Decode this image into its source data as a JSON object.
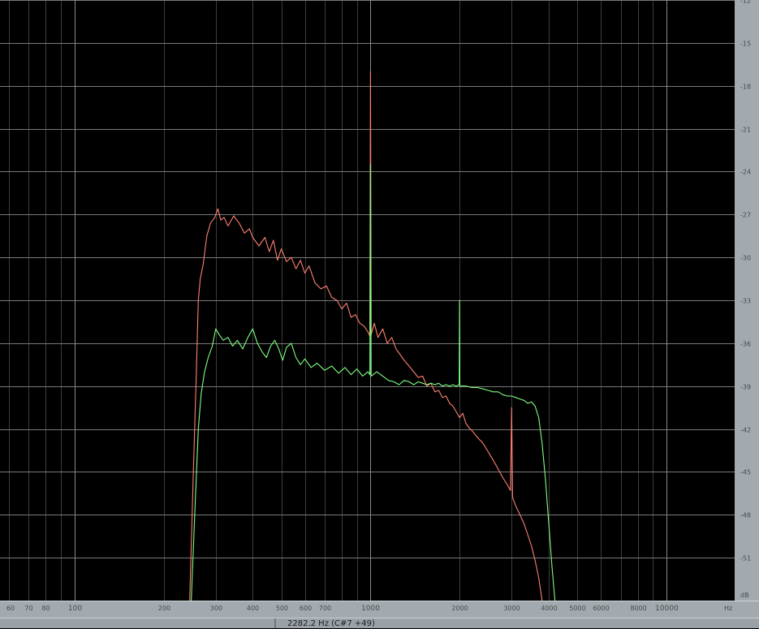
{
  "chart_data": {
    "type": "line",
    "x_scale": "log",
    "xlim": [
      56,
      17000
    ],
    "ylim": [
      -54,
      -12
    ],
    "grid": true,
    "x_unit": "Hz",
    "y_unit": "dB",
    "x_ticks": [
      {
        "value": 60,
        "label": "60",
        "major": false
      },
      {
        "value": 70,
        "label": "70",
        "major": false
      },
      {
        "value": 80,
        "label": "80",
        "major": false
      },
      {
        "value": 100,
        "label": "100",
        "major": true
      },
      {
        "value": 200,
        "label": "200",
        "major": false
      },
      {
        "value": 300,
        "label": "300",
        "major": false
      },
      {
        "value": 400,
        "label": "400",
        "major": false
      },
      {
        "value": 500,
        "label": "500",
        "major": false
      },
      {
        "value": 600,
        "label": "600",
        "major": false
      },
      {
        "value": 700,
        "label": "700",
        "major": false
      },
      {
        "value": 1000,
        "label": "1000",
        "major": true
      },
      {
        "value": 2000,
        "label": "2000",
        "major": false
      },
      {
        "value": 3000,
        "label": "3000",
        "major": false
      },
      {
        "value": 4000,
        "label": "4000",
        "major": false
      },
      {
        "value": 5000,
        "label": "5000",
        "major": false
      },
      {
        "value": 6000,
        "label": "6000",
        "major": false
      },
      {
        "value": 8000,
        "label": "8000",
        "major": false
      },
      {
        "value": 10000,
        "label": "10000",
        "major": true
      }
    ],
    "y_ticks": [
      {
        "value": -12,
        "label": "-12"
      },
      {
        "value": -15,
        "label": "-15"
      },
      {
        "value": -18,
        "label": "-18"
      },
      {
        "value": -21,
        "label": "-21"
      },
      {
        "value": -24,
        "label": "-24"
      },
      {
        "value": -27,
        "label": "-27"
      },
      {
        "value": -30,
        "label": "-30"
      },
      {
        "value": -33,
        "label": "-33"
      },
      {
        "value": -36,
        "label": "-36"
      },
      {
        "value": -39,
        "label": "-39"
      },
      {
        "value": -42,
        "label": "-42"
      },
      {
        "value": -45,
        "label": "-45"
      },
      {
        "value": -48,
        "label": "-48"
      },
      {
        "value": -51,
        "label": "-51"
      }
    ],
    "series": [
      {
        "color": "#ff8070",
        "points": [
          [
            245,
            -54
          ],
          [
            252,
            -45
          ],
          [
            258,
            -38
          ],
          [
            262,
            -33
          ],
          [
            266,
            -31.5
          ],
          [
            272,
            -30.5
          ],
          [
            280,
            -28.5
          ],
          [
            288,
            -27.6
          ],
          [
            298,
            -27.2
          ],
          [
            305,
            -26.6
          ],
          [
            312,
            -27.4
          ],
          [
            320,
            -27.2
          ],
          [
            330,
            -27.8
          ],
          [
            345,
            -27.1
          ],
          [
            360,
            -27.6
          ],
          [
            375,
            -28.3
          ],
          [
            390,
            -28.0
          ],
          [
            400,
            -28.6
          ],
          [
            420,
            -29.2
          ],
          [
            440,
            -28.6
          ],
          [
            455,
            -29.6
          ],
          [
            470,
            -28.8
          ],
          [
            485,
            -30.2
          ],
          [
            500,
            -29.4
          ],
          [
            520,
            -30.3
          ],
          [
            540,
            -30.0
          ],
          [
            560,
            -30.8
          ],
          [
            580,
            -30.2
          ],
          [
            600,
            -31.1
          ],
          [
            620,
            -30.6
          ],
          [
            650,
            -31.8
          ],
          [
            680,
            -32.2
          ],
          [
            710,
            -32.0
          ],
          [
            740,
            -32.8
          ],
          [
            770,
            -33.0
          ],
          [
            800,
            -33.6
          ],
          [
            830,
            -33.2
          ],
          [
            860,
            -34.2
          ],
          [
            890,
            -34.0
          ],
          [
            920,
            -34.6
          ],
          [
            950,
            -34.8
          ],
          [
            980,
            -35.2
          ],
          [
            995,
            -35.5
          ],
          [
            1000,
            -17.0
          ],
          [
            1005,
            -35.4
          ],
          [
            1030,
            -34.6
          ],
          [
            1060,
            -35.6
          ],
          [
            1100,
            -35.0
          ],
          [
            1140,
            -36.0
          ],
          [
            1180,
            -35.6
          ],
          [
            1220,
            -36.4
          ],
          [
            1260,
            -36.8
          ],
          [
            1300,
            -37.2
          ],
          [
            1350,
            -37.6
          ],
          [
            1400,
            -38.0
          ],
          [
            1450,
            -38.4
          ],
          [
            1500,
            -38.3
          ],
          [
            1550,
            -39.0
          ],
          [
            1600,
            -38.8
          ],
          [
            1650,
            -39.4
          ],
          [
            1700,
            -39.3
          ],
          [
            1750,
            -39.8
          ],
          [
            1800,
            -39.7
          ],
          [
            1850,
            -40.2
          ],
          [
            1900,
            -40.4
          ],
          [
            1950,
            -40.8
          ],
          [
            2000,
            -41.2
          ],
          [
            2050,
            -40.9
          ],
          [
            2100,
            -41.6
          ],
          [
            2150,
            -41.9
          ],
          [
            2200,
            -42.1
          ],
          [
            2300,
            -42.6
          ],
          [
            2400,
            -43.0
          ],
          [
            2500,
            -43.6
          ],
          [
            2600,
            -44.2
          ],
          [
            2700,
            -44.8
          ],
          [
            2800,
            -45.4
          ],
          [
            2900,
            -45.9
          ],
          [
            2970,
            -46.3
          ],
          [
            3000,
            -40.5
          ],
          [
            3020,
            -46.8
          ],
          [
            3100,
            -47.4
          ],
          [
            3200,
            -48.0
          ],
          [
            3300,
            -48.6
          ],
          [
            3400,
            -49.4
          ],
          [
            3500,
            -50.2
          ],
          [
            3600,
            -51.2
          ],
          [
            3700,
            -52.4
          ],
          [
            3800,
            -54
          ]
        ]
      },
      {
        "color": "#80ff80",
        "points": [
          [
            248,
            -54
          ],
          [
            256,
            -47
          ],
          [
            262,
            -42
          ],
          [
            268,
            -39.5
          ],
          [
            275,
            -38.0
          ],
          [
            283,
            -37.0
          ],
          [
            292,
            -36.2
          ],
          [
            300,
            -35.0
          ],
          [
            308,
            -35.4
          ],
          [
            318,
            -35.8
          ],
          [
            330,
            -35.6
          ],
          [
            342,
            -36.2
          ],
          [
            355,
            -35.8
          ],
          [
            370,
            -36.4
          ],
          [
            385,
            -35.6
          ],
          [
            400,
            -35.0
          ],
          [
            415,
            -36.0
          ],
          [
            430,
            -36.6
          ],
          [
            445,
            -37.0
          ],
          [
            460,
            -36.2
          ],
          [
            475,
            -35.8
          ],
          [
            490,
            -36.4
          ],
          [
            505,
            -37.2
          ],
          [
            520,
            -36.3
          ],
          [
            540,
            -36.0
          ],
          [
            560,
            -37.0
          ],
          [
            580,
            -37.5
          ],
          [
            600,
            -37.1
          ],
          [
            630,
            -37.7
          ],
          [
            660,
            -37.4
          ],
          [
            700,
            -37.9
          ],
          [
            740,
            -37.6
          ],
          [
            780,
            -38.1
          ],
          [
            820,
            -37.7
          ],
          [
            860,
            -38.2
          ],
          [
            900,
            -37.8
          ],
          [
            940,
            -38.3
          ],
          [
            980,
            -38.0
          ],
          [
            995,
            -38.2
          ],
          [
            1000,
            -23.5
          ],
          [
            1005,
            -38.3
          ],
          [
            1050,
            -38.0
          ],
          [
            1100,
            -38.3
          ],
          [
            1150,
            -38.6
          ],
          [
            1200,
            -38.7
          ],
          [
            1250,
            -38.9
          ],
          [
            1300,
            -38.6
          ],
          [
            1350,
            -38.7
          ],
          [
            1400,
            -38.9
          ],
          [
            1450,
            -38.7
          ],
          [
            1500,
            -38.8
          ],
          [
            1550,
            -38.9
          ],
          [
            1600,
            -38.8
          ],
          [
            1650,
            -38.9
          ],
          [
            1700,
            -38.8
          ],
          [
            1750,
            -39.0
          ],
          [
            1800,
            -38.9
          ],
          [
            1850,
            -39.0
          ],
          [
            1900,
            -38.9
          ],
          [
            1950,
            -39.0
          ],
          [
            1995,
            -38.9
          ],
          [
            2000,
            -33.0
          ],
          [
            2005,
            -39.0
          ],
          [
            2100,
            -39.0
          ],
          [
            2200,
            -39.1
          ],
          [
            2300,
            -39.1
          ],
          [
            2400,
            -39.2
          ],
          [
            2500,
            -39.3
          ],
          [
            2600,
            -39.4
          ],
          [
            2700,
            -39.4
          ],
          [
            2800,
            -39.6
          ],
          [
            2900,
            -39.7
          ],
          [
            3000,
            -39.7
          ],
          [
            3100,
            -39.8
          ],
          [
            3200,
            -39.9
          ],
          [
            3300,
            -40.0
          ],
          [
            3400,
            -40.2
          ],
          [
            3500,
            -40.1
          ],
          [
            3600,
            -40.4
          ],
          [
            3700,
            -41.2
          ],
          [
            3800,
            -43.0
          ],
          [
            3900,
            -45.5
          ],
          [
            4000,
            -48.5
          ],
          [
            4100,
            -51.5
          ],
          [
            4200,
            -54
          ]
        ]
      }
    ]
  },
  "status": {
    "readout": "2282.2 Hz (C#7 +49)"
  }
}
